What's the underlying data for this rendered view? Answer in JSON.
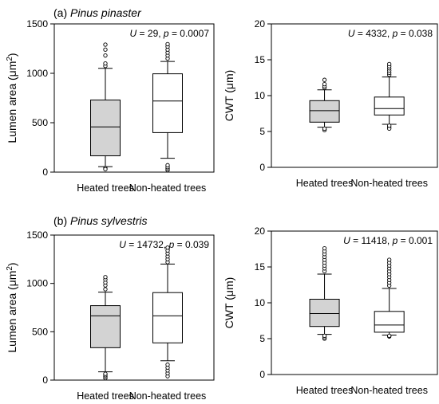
{
  "section_a": {
    "letter": "(a)",
    "species": "Pinus pinaster"
  },
  "section_b": {
    "letter": "(b)",
    "species": "Pinus sylvestris"
  },
  "chart_data": [
    {
      "type": "box",
      "categories": [
        "Heated trees",
        "Non-heated trees"
      ],
      "ylabel": "Lumen area (μm²)",
      "ylim": [
        0,
        1500
      ],
      "yticks": [
        0,
        500,
        1000,
        1500
      ],
      "annotation": {
        "U_label": "U",
        "U_value": "29",
        "p_label": "p",
        "p_value": "0.0007"
      },
      "series": [
        {
          "category": "Heated trees",
          "fill": "#d3d3d3",
          "whisker_low": 55,
          "q1": 165,
          "median": 458,
          "q3": 730,
          "whisker_high": 1050,
          "outliers": [
            40,
            30,
            1075,
            1100,
            1180,
            1240,
            1290
          ]
        },
        {
          "category": "Non-heated trees",
          "fill": "#ffffff",
          "whisker_low": 140,
          "q1": 400,
          "median": 720,
          "q3": 995,
          "whisker_high": 1120,
          "outliers": [
            20,
            35,
            50,
            70,
            1150,
            1180,
            1210,
            1240,
            1270,
            1295
          ]
        }
      ]
    },
    {
      "type": "box",
      "categories": [
        "Heated trees",
        "Non-heated trees"
      ],
      "ylabel": "CWT (μm)",
      "ylim": [
        0,
        20
      ],
      "yticks": [
        0,
        5,
        10,
        15,
        20
      ],
      "annotation": {
        "U_label": "U",
        "U_value": "4332",
        "p_label": "p",
        "p_value": "0.038"
      },
      "series": [
        {
          "category": "Heated trees",
          "fill": "#d3d3d3",
          "whisker_low": 5.6,
          "q1": 6.3,
          "median": 7.9,
          "q3": 9.3,
          "whisker_high": 10.8,
          "outliers": [
            5.3,
            5.2,
            5.4,
            11.1,
            11.3,
            11.6,
            12.2
          ]
        },
        {
          "category": "Non-heated trees",
          "fill": "#ffffff",
          "whisker_low": 6.0,
          "q1": 7.3,
          "median": 8.2,
          "q3": 9.8,
          "whisker_high": 12.6,
          "outliers": [
            5.6,
            5.4,
            5.8,
            12.9,
            13.2,
            13.5,
            13.8,
            14.1,
            14.4
          ]
        }
      ]
    },
    {
      "type": "box",
      "categories": [
        "Heated trees",
        "Non-heated trees"
      ],
      "ylabel": "Lumen area (μm²)",
      "ylim": [
        0,
        1500
      ],
      "yticks": [
        0,
        500,
        1000,
        1500
      ],
      "annotation": {
        "U_label": "U",
        "U_value": "14732",
        "p_label": "p",
        "p_value": "0.039"
      },
      "series": [
        {
          "category": "Heated trees",
          "fill": "#d3d3d3",
          "whisker_low": 85,
          "q1": 335,
          "median": 665,
          "q3": 770,
          "whisker_high": 910,
          "outliers": [
            20,
            35,
            50,
            65,
            940,
            980,
            1010,
            1040,
            1065
          ]
        },
        {
          "category": "Non-heated trees",
          "fill": "#ffffff",
          "whisker_low": 200,
          "q1": 385,
          "median": 665,
          "q3": 905,
          "whisker_high": 1200,
          "outliers": [
            40,
            70,
            100,
            130,
            160,
            1220,
            1250,
            1280,
            1310,
            1340,
            1370
          ]
        }
      ]
    },
    {
      "type": "box",
      "categories": [
        "Heated trees",
        "Non-heated trees"
      ],
      "ylabel": "CWT (μm)",
      "ylim": [
        0,
        20
      ],
      "yticks": [
        0,
        5,
        10,
        15,
        20
      ],
      "annotation": {
        "U_label": "U",
        "U_value": "11418",
        "p_label": "p",
        "p_value": "0.001"
      },
      "series": [
        {
          "category": "Heated trees",
          "fill": "#d3d3d3",
          "whisker_low": 5.6,
          "q1": 6.7,
          "median": 8.5,
          "q3": 10.5,
          "whisker_high": 14.0,
          "outliers": [
            5.0,
            5.2,
            5.4,
            14.4,
            14.8,
            15.2,
            15.6,
            16.0,
            16.4,
            16.8,
            17.2,
            17.6
          ]
        },
        {
          "category": "Non-heated trees",
          "fill": "#ffffff",
          "whisker_low": 5.5,
          "q1": 5.9,
          "median": 6.9,
          "q3": 8.8,
          "whisker_high": 12.0,
          "outliers": [
            5.3,
            5.4,
            12.4,
            12.8,
            13.2,
            13.6,
            14.0,
            14.4,
            14.8,
            15.2,
            15.6,
            16.0
          ]
        }
      ]
    }
  ]
}
